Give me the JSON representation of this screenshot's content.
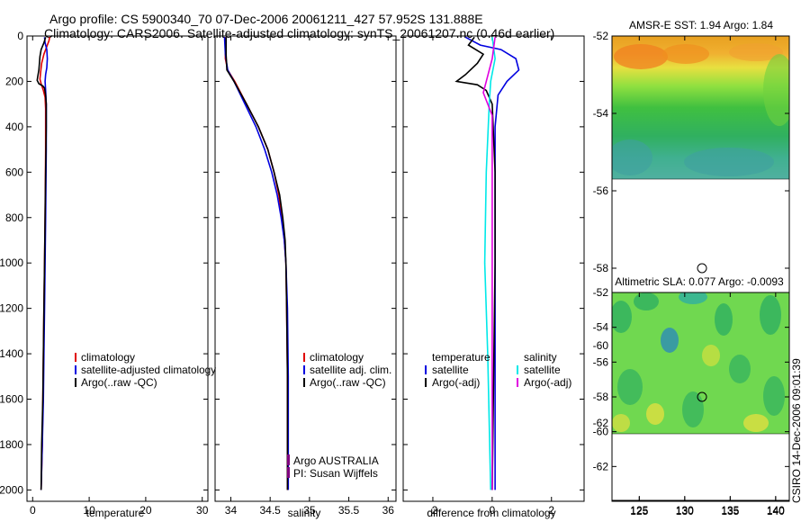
{
  "header": {
    "line1": "Argo profile: CS 5900340_70 07-Dec-2006 20061211_427 57.952S 131.888E",
    "line2": "Climatology: CARS2006. Satellite-adjusted climatology: synTS_20061207.nc (0.46d earlier)"
  },
  "colors": {
    "climatology": "#e00000",
    "satellite": "#0000e0",
    "argo": "#000000",
    "satellite_salinity": "#00e8e8",
    "argo_adj_salinity": "#e000e0",
    "float_marker": "#800080"
  },
  "chart_data": [
    {
      "type": "line",
      "xlabel": "temperature",
      "xlim": [
        -1,
        31
      ],
      "xticks": [
        0,
        10,
        20,
        30
      ],
      "ylim": [
        0,
        2050
      ],
      "yticks": [
        0,
        200,
        400,
        600,
        800,
        1000,
        1200,
        1400,
        1600,
        1800,
        2000
      ],
      "y_reversed": true,
      "legend": [
        "climatology",
        "satellite-adjusted climatology",
        "Argo(..raw -QC)"
      ],
      "series": [
        {
          "name": "climatology",
          "color": "climatology",
          "points": [
            [
              3.0,
              5
            ],
            [
              2.9,
              20
            ],
            [
              2.6,
              40
            ],
            [
              2.0,
              80
            ],
            [
              1.6,
              120
            ],
            [
              1.4,
              160
            ],
            [
              1.3,
              190
            ],
            [
              1.5,
              210
            ],
            [
              1.9,
              240
            ],
            [
              2.2,
              270
            ],
            [
              2.3,
              320
            ],
            [
              2.3,
              500
            ],
            [
              2.2,
              800
            ],
            [
              2.1,
              1000
            ],
            [
              2.0,
              1200
            ],
            [
              1.9,
              1400
            ],
            [
              1.8,
              1600
            ],
            [
              1.7,
              1800
            ],
            [
              1.5,
              2000
            ]
          ]
        },
        {
          "name": "satellite-adjusted climatology",
          "color": "satellite",
          "points": [
            [
              2.1,
              5
            ],
            [
              2.2,
              30
            ],
            [
              2.5,
              60
            ],
            [
              2.6,
              100
            ],
            [
              2.5,
              140
            ],
            [
              2.3,
              170
            ],
            [
              2.2,
              200
            ],
            [
              2.3,
              240
            ],
            [
              2.4,
              300
            ],
            [
              2.4,
              500
            ],
            [
              2.3,
              800
            ],
            [
              2.2,
              1000
            ],
            [
              2.1,
              1200
            ],
            [
              2.0,
              1400
            ],
            [
              1.9,
              1600
            ],
            [
              1.7,
              1800
            ],
            [
              1.5,
              2000
            ]
          ]
        },
        {
          "name": "Argo(..raw -QC)",
          "color": "argo",
          "points": [
            [
              2.3,
              5
            ],
            [
              2.0,
              30
            ],
            [
              1.5,
              60
            ],
            [
              1.3,
              90
            ],
            [
              1.2,
              120
            ],
            [
              1.1,
              150
            ],
            [
              0.9,
              180
            ],
            [
              0.8,
              195
            ],
            [
              1.1,
              210
            ],
            [
              1.8,
              220
            ],
            [
              2.1,
              230
            ],
            [
              2.3,
              260
            ],
            [
              2.4,
              300
            ],
            [
              2.4,
              400
            ],
            [
              2.3,
              600
            ],
            [
              2.2,
              800
            ],
            [
              2.1,
              1000
            ],
            [
              2.0,
              1200
            ],
            [
              1.9,
              1400
            ],
            [
              1.8,
              1600
            ],
            [
              1.6,
              1800
            ],
            [
              1.5,
              2000
            ]
          ]
        }
      ]
    },
    {
      "type": "line",
      "xlabel": "salinity",
      "xlim": [
        33.8,
        36.1
      ],
      "xticks": [
        34,
        34.5,
        35,
        35.5,
        36
      ],
      "ylim": [
        0,
        2050
      ],
      "y_reversed": true,
      "legend": [
        "climatology",
        "satellite adj. clim.",
        "Argo(..raw -QC)"
      ],
      "annotation": [
        "Argo AUSTRALIA",
        "PI: Susan Wijffels"
      ],
      "series": [
        {
          "name": "climatology",
          "color": "climatology",
          "points": [
            [
              33.93,
              5
            ],
            [
              33.93,
              100
            ],
            [
              33.96,
              150
            ],
            [
              34.05,
              200
            ],
            [
              34.2,
              300
            ],
            [
              34.35,
              400
            ],
            [
              34.47,
              500
            ],
            [
              34.55,
              600
            ],
            [
              34.61,
              700
            ],
            [
              34.65,
              800
            ],
            [
              34.68,
              900
            ],
            [
              34.7,
              1000
            ],
            [
              34.71,
              1200
            ],
            [
              34.72,
              1500
            ],
            [
              34.72,
              2000
            ]
          ]
        },
        {
          "name": "satellite adj. clim.",
          "color": "satellite",
          "points": [
            [
              33.92,
              5
            ],
            [
              33.93,
              80
            ],
            [
              33.96,
              150
            ],
            [
              34.04,
              200
            ],
            [
              34.18,
              300
            ],
            [
              34.32,
              400
            ],
            [
              34.43,
              500
            ],
            [
              34.52,
              600
            ],
            [
              34.59,
              700
            ],
            [
              34.64,
              800
            ],
            [
              34.68,
              900
            ],
            [
              34.7,
              1000
            ],
            [
              34.72,
              1200
            ],
            [
              34.73,
              1500
            ],
            [
              34.73,
              2000
            ]
          ]
        },
        {
          "name": "Argo(..raw -QC)",
          "color": "argo",
          "points": [
            [
              33.94,
              5
            ],
            [
              33.94,
              80
            ],
            [
              33.95,
              150
            ],
            [
              34.04,
              200
            ],
            [
              34.2,
              300
            ],
            [
              34.35,
              400
            ],
            [
              34.47,
              500
            ],
            [
              34.55,
              600
            ],
            [
              34.62,
              700
            ],
            [
              34.66,
              800
            ],
            [
              34.69,
              900
            ],
            [
              34.7,
              1000
            ],
            [
              34.71,
              1200
            ],
            [
              34.72,
              1500
            ],
            [
              34.72,
              2000
            ]
          ]
        }
      ]
    },
    {
      "type": "line",
      "xlabel": "difference from climatology",
      "xlim": [
        -3,
        3.1
      ],
      "xticks": [
        -2,
        0,
        2
      ],
      "ylim": [
        0,
        2050
      ],
      "y_reversed": true,
      "legend_left_title": "temperature",
      "legend_left": [
        "satellite",
        "Argo(-adj)"
      ],
      "legend_right_title": "salinity",
      "legend_right": [
        "satellite",
        "Argo(-adj)"
      ],
      "series": [
        {
          "name": "satellite",
          "color": "satellite",
          "points": [
            [
              -0.9,
              5
            ],
            [
              -0.4,
              40
            ],
            [
              0.3,
              60
            ],
            [
              0.8,
              100
            ],
            [
              0.9,
              150
            ],
            [
              0.5,
              200
            ],
            [
              0.2,
              260
            ],
            [
              0.1,
              400
            ],
            [
              0.1,
              1000
            ],
            [
              0.1,
              2000
            ]
          ]
        },
        {
          "name": "Argo(-adj)",
          "color": "argo",
          "points": [
            [
              -0.6,
              5
            ],
            [
              -0.8,
              40
            ],
            [
              -0.3,
              80
            ],
            [
              -0.5,
              120
            ],
            [
              -0.9,
              170
            ],
            [
              -1.2,
              200
            ],
            [
              -0.5,
              215
            ],
            [
              -0.2,
              240
            ],
            [
              0.0,
              300
            ],
            [
              0.1,
              600
            ],
            [
              0.1,
              1000
            ],
            [
              0.0,
              2000
            ]
          ]
        },
        {
          "name": "satellite",
          "color": "satellite_salinity",
          "points": [
            [
              0.0,
              5
            ],
            [
              0.1,
              100
            ],
            [
              -0.05,
              200
            ],
            [
              -0.1,
              300
            ],
            [
              -0.2,
              600
            ],
            [
              -0.25,
              1000
            ],
            [
              -0.15,
              1400
            ],
            [
              -0.05,
              2000
            ]
          ]
        },
        {
          "name": "Argo(-adj)",
          "color": "argo_adj_salinity",
          "points": [
            [
              0.1,
              5
            ],
            [
              0.0,
              100
            ],
            [
              -0.2,
              200
            ],
            [
              -0.3,
              250
            ],
            [
              0.0,
              350
            ],
            [
              0.0,
              1000
            ],
            [
              0.0,
              2000
            ]
          ]
        }
      ]
    },
    {
      "type": "heatmap",
      "title": "AMSR-E SST: 1.94 Argo: 1.84",
      "xlim": [
        122,
        141.5
      ],
      "xticks": [
        125,
        130,
        135,
        140
      ],
      "ylim": [
        -64,
        -52
      ],
      "yticks": [
        -52,
        -54,
        -56,
        -58,
        -60,
        -62
      ],
      "float_position": [
        131.9,
        -58.0
      ]
    },
    {
      "type": "heatmap",
      "title": "Altimetric SLA: 0.077 Argo: -0.0093",
      "xlim": [
        122,
        141.5
      ],
      "xticks": [
        125,
        130,
        135,
        140
      ],
      "ylim": [
        -64,
        -52
      ],
      "yticks": [
        -52,
        -54,
        -56,
        -58,
        -60,
        -62
      ],
      "float_position": [
        131.9,
        -58.0
      ]
    }
  ],
  "footer": {
    "stamp": "CSIRO 14-Dec-2006 09:01:39"
  }
}
